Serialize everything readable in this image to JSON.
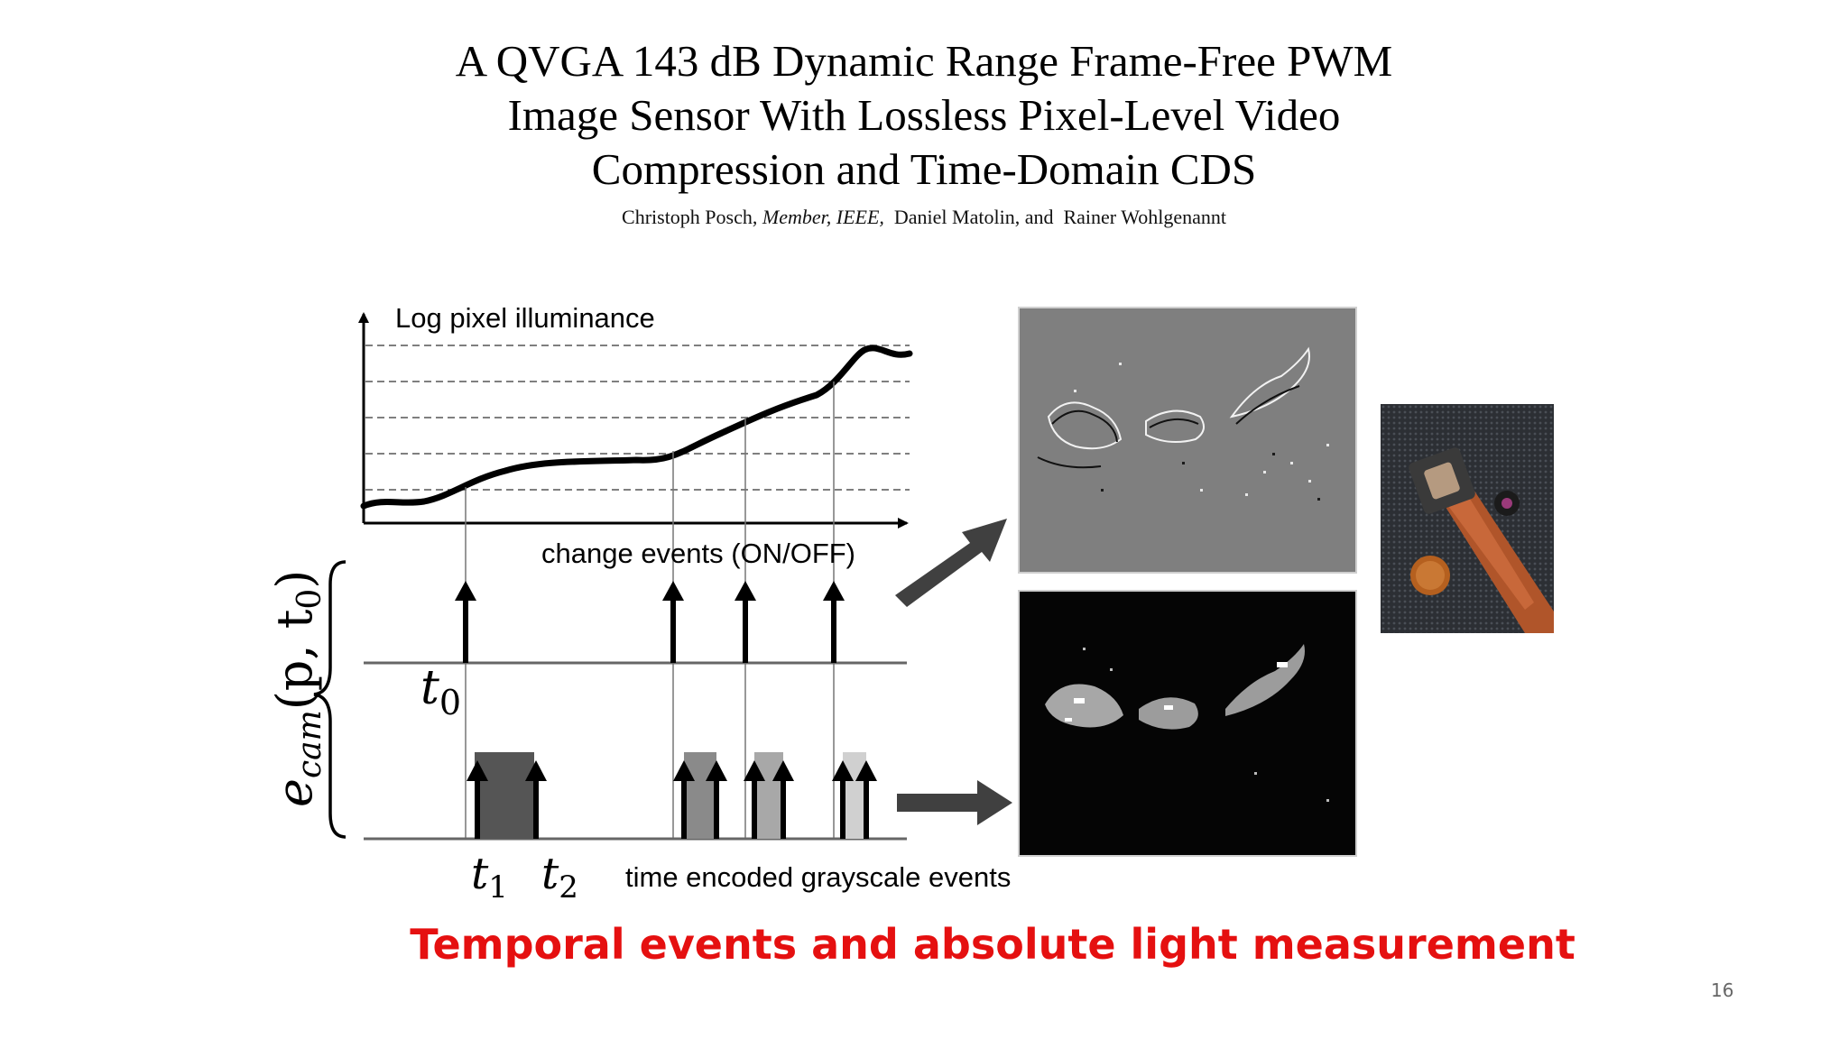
{
  "paper": {
    "title_lines": [
      "A QVGA 143 dB Dynamic Range Frame-Free PWM",
      "Image Sensor With Lossless Pixel-Level Video",
      "Compression and Time-Domain CDS"
    ],
    "author_1": "Christoph Posch,",
    "author_1_affiliation": "Member, IEEE,",
    "authors_rest": "Daniel Matolin, and  Rainer Wohlgenannt"
  },
  "diagram": {
    "y_axis_label": "Log pixel illuminance",
    "change_events_label": "change events (ON/OFF)",
    "grayscale_events_label": "time encoded grayscale events",
    "side_label_base": "e",
    "side_label_subscript": "cam",
    "side_label_args": "(p, t",
    "side_label_args_sub": "0",
    "side_label_close": ")",
    "t0_label": "t",
    "t0_sub": "0",
    "t1_label": "t",
    "t1_sub": "1",
    "t2_label": "t",
    "t2_sub": "2"
  },
  "images": {
    "events_image_icon": "event-camera-change-image",
    "grayscale_image_icon": "event-camera-grayscale-image",
    "sensor_photo_icon": "sensor-chip-photo"
  },
  "caption": "Temporal events and absolute light measurement",
  "page_number": "16",
  "colors": {
    "caption": "#e51010",
    "arrow": "#404040"
  }
}
